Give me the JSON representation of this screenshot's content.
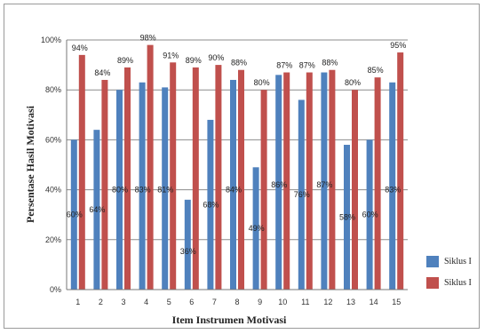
{
  "chart_data": {
    "type": "bar",
    "xlabel": "Item Instrumen Motivasi",
    "ylabel": "Persentase Hasil Motivasi",
    "ylim": [
      0,
      100
    ],
    "yticks": [
      "0%",
      "20%",
      "40%",
      "60%",
      "80%",
      "100%"
    ],
    "grid": true,
    "legend_position": "right",
    "categories": [
      "1",
      "2",
      "3",
      "4",
      "5",
      "6",
      "7",
      "8",
      "9",
      "10",
      "11",
      "12",
      "13",
      "14",
      "15"
    ],
    "series": [
      {
        "name": "Siklus I",
        "color": "#4f81bd",
        "values": [
          60,
          64,
          80,
          83,
          81,
          36,
          68,
          84,
          49,
          86,
          76,
          87,
          58,
          60,
          83
        ],
        "labels": [
          "60%",
          "64%",
          "80%",
          "83%",
          "81%",
          "36%",
          "68%",
          "84%",
          "49%",
          "86%",
          "76%",
          "87%",
          "58%",
          "60%",
          "83%"
        ]
      },
      {
        "name": "Siklus I",
        "color": "#c0504d",
        "values": [
          94,
          84,
          89,
          98,
          91,
          89,
          90,
          88,
          80,
          87,
          87,
          88,
          80,
          85,
          95
        ],
        "labels": [
          "94%",
          "84%",
          "89%",
          "98%",
          "91%",
          "89%",
          "90%",
          "88%",
          "80%",
          "87%",
          "87%",
          "88%",
          "80%",
          "85%",
          "95%"
        ]
      }
    ]
  }
}
